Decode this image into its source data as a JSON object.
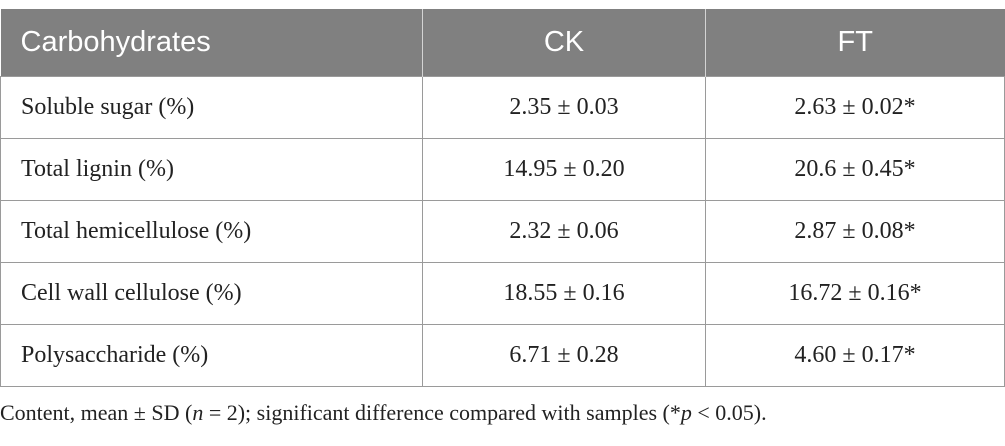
{
  "table": {
    "headers": [
      "Carbohydrates",
      "CK",
      "FT"
    ],
    "rows": [
      [
        "Soluble sugar (%)",
        "2.35 ± 0.03",
        "2.63 ± 0.02*"
      ],
      [
        "Total lignin (%)",
        "14.95 ± 0.20",
        "20.6 ± 0.45*"
      ],
      [
        "Total hemicellulose (%)",
        "2.32 ± 0.06",
        "2.87 ± 0.08*"
      ],
      [
        "Cell wall cellulose (%)",
        "18.55 ± 0.16",
        "16.72 ± 0.16*"
      ],
      [
        "Polysaccharide (%)",
        "6.71 ± 0.28",
        "4.60 ± 0.17*"
      ]
    ]
  },
  "footnote": {
    "part1": "Content, mean ± SD (",
    "n_var": "n",
    "part2": " = 2); significant difference compared with samples (*",
    "p_var": "p",
    "part3": " < 0.05)."
  },
  "colors": {
    "header_bg": "#808080",
    "header_text": "#ffffff",
    "border": "#9a9a9a"
  }
}
